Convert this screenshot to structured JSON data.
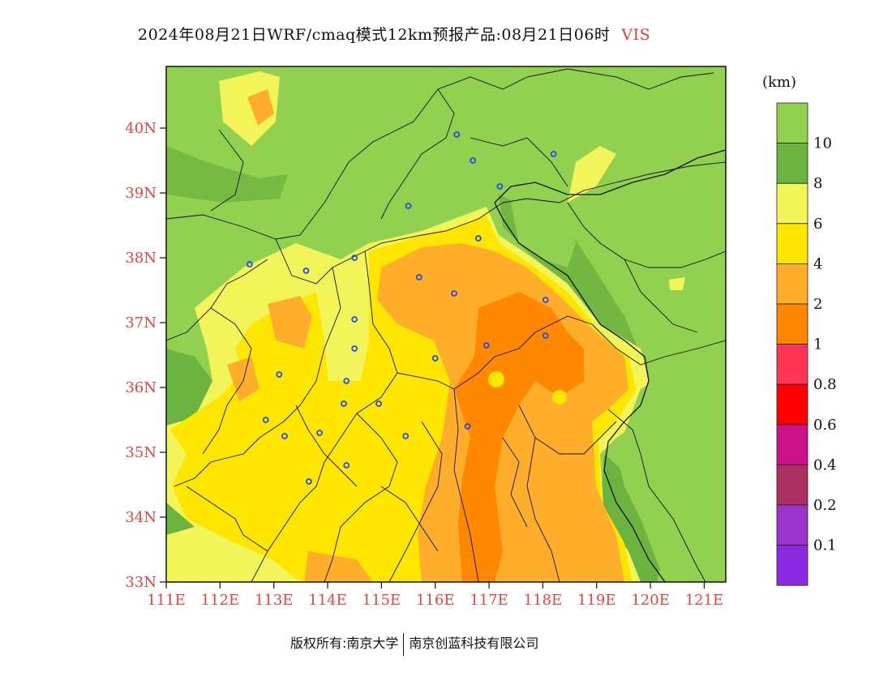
{
  "title": {
    "main": "2024年08月21日WRF/cmaq模式12km预报产品:08月21日06时",
    "variable": "VIS"
  },
  "map": {
    "lon_labels": [
      "111E",
      "112E",
      "113E",
      "114E",
      "115E",
      "116E",
      "117E",
      "118E",
      "119E",
      "120E",
      "121E"
    ],
    "lat_labels": [
      "33N",
      "34N",
      "35N",
      "36N",
      "37N",
      "38N",
      "39N",
      "40N"
    ],
    "lon_range": [
      111,
      121.4
    ],
    "lat_range": [
      33,
      40.95
    ],
    "background_color": "#92d050",
    "stations": [
      {
        "lon": 116.4,
        "lat": 39.9
      },
      {
        "lon": 116.7,
        "lat": 39.5
      },
      {
        "lon": 118.2,
        "lat": 39.6
      },
      {
        "lon": 117.2,
        "lat": 39.1
      },
      {
        "lon": 115.5,
        "lat": 38.8
      },
      {
        "lon": 116.8,
        "lat": 38.3
      },
      {
        "lon": 112.55,
        "lat": 37.9
      },
      {
        "lon": 113.6,
        "lat": 37.8
      },
      {
        "lon": 114.5,
        "lat": 38.0
      },
      {
        "lon": 115.7,
        "lat": 37.7
      },
      {
        "lon": 116.35,
        "lat": 37.45
      },
      {
        "lon": 118.05,
        "lat": 37.35
      },
      {
        "lon": 114.5,
        "lat": 37.05
      },
      {
        "lon": 114.5,
        "lat": 36.6
      },
      {
        "lon": 116.95,
        "lat": 36.65
      },
      {
        "lon": 118.05,
        "lat": 36.8
      },
      {
        "lon": 113.1,
        "lat": 36.2
      },
      {
        "lon": 114.35,
        "lat": 36.1
      },
      {
        "lon": 116.0,
        "lat": 36.45
      },
      {
        "lon": 114.3,
        "lat": 35.75
      },
      {
        "lon": 114.95,
        "lat": 35.75
      },
      {
        "lon": 112.85,
        "lat": 35.5
      },
      {
        "lon": 113.2,
        "lat": 35.25
      },
      {
        "lon": 113.85,
        "lat": 35.3
      },
      {
        "lon": 115.45,
        "lat": 35.25
      },
      {
        "lon": 116.6,
        "lat": 35.4
      },
      {
        "lon": 114.35,
        "lat": 34.8
      },
      {
        "lon": 113.65,
        "lat": 34.55
      }
    ]
  },
  "legend": {
    "unit": "(km)",
    "levels": [
      {
        "label": "10",
        "color": "#92d050"
      },
      {
        "label": "8",
        "color": "#6db33f"
      },
      {
        "label": "6",
        "color": "#f2f55a"
      },
      {
        "label": "4",
        "color": "#ffe600"
      },
      {
        "label": "2",
        "color": "#ffae2b"
      },
      {
        "label": "1",
        "color": "#ff8800"
      },
      {
        "label": "0.8",
        "color": "#ff3355"
      },
      {
        "label": "0.6",
        "color": "#ff0000"
      },
      {
        "label": "0.4",
        "color": "#cc1188"
      },
      {
        "label": "0.2",
        "color": "#aa3060"
      },
      {
        "label": "0.1",
        "color": "#9933cc"
      },
      {
        "label": "",
        "color": "#8a2be2"
      }
    ]
  },
  "footer": {
    "left": "版权所有:南京大学",
    "right": "南京创蓝科技有限公司"
  }
}
